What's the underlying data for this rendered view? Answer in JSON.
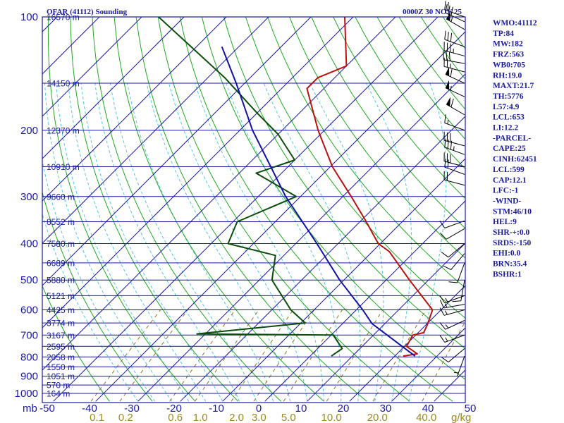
{
  "title": "OFAR (41112) Sounding",
  "datetime": "0000Z 30 NOV 25",
  "p_axis_unit": "mb",
  "mixing_ratio_unit": "g/kg",
  "indices": [
    "WMO:41112",
    "TP:84",
    "MW:182",
    "FRZ:563",
    "WB0:705",
    "RH:19.0",
    "MAXT:21.7",
    "TH:5776",
    "L57:4.9",
    "LCL:653",
    "LI:12.2",
    "-PARCEL-",
    "CAPE:25",
    "CINH:62451",
    "LCL:599",
    "CAP:12.1",
    "LFC:-1",
    "-WIND-",
    "STM:46/10",
    "HEL:9",
    "SHR-+:0.0",
    "SRDS:-150",
    "EHI:0.0",
    "BRN:35.4",
    "BSHR:1"
  ],
  "colors": {
    "frame": "#1a1aa0",
    "isobar": "#1a1aa0",
    "isotherm": "#1a1aa0",
    "dry_adiabat": "#1faa1f",
    "moist_adiabat": "#55c8e0",
    "mixing_ratio": "#8a7a20",
    "temperature": "#bb1111",
    "dewpoint": "#0b4d0b",
    "parcel": "#1111aa",
    "wind": "#000000"
  },
  "chart_data": {
    "type": "line",
    "chart_kind": "skew-t log-p sounding",
    "pressure_levels_mb": [
      1000,
      900,
      800,
      700,
      600,
      500,
      400,
      300,
      200,
      100
    ],
    "height_labels": [
      {
        "p": 1000,
        "label": "164 m"
      },
      {
        "p": 950,
        "label": "570 m"
      },
      {
        "p": 900,
        "label": "1051 m"
      },
      {
        "p": 850,
        "label": "1550 m"
      },
      {
        "p": 800,
        "label": "2058 m"
      },
      {
        "p": 750,
        "label": "2595 m"
      },
      {
        "p": 700,
        "label": "3167 m"
      },
      {
        "p": 650,
        "label": "3774 m"
      },
      {
        "p": 600,
        "label": "4425 m"
      },
      {
        "p": 550,
        "label": "5121 m"
      },
      {
        "p": 500,
        "label": "5880 m"
      },
      {
        "p": 450,
        "label": "6689 m"
      },
      {
        "p": 400,
        "label": "7580 m"
      },
      {
        "p": 350,
        "label": "8552 m"
      },
      {
        "p": 300,
        "label": "9660 m"
      },
      {
        "p": 250,
        "label": "10910 m"
      },
      {
        "p": 200,
        "label": "12370 m"
      },
      {
        "p": 150,
        "label": "14150 m"
      },
      {
        "p": 100,
        "label": "16570 m"
      }
    ],
    "temperature_ticks": [
      "-50",
      "-40",
      "-30",
      "-20",
      "-10",
      "0",
      "10",
      "20",
      "30",
      "40",
      "50"
    ],
    "temperature_ticks_c": [
      -50,
      -40,
      -30,
      -20,
      -10,
      0,
      10,
      20,
      30,
      40,
      50
    ],
    "mixing_ratio_ticks": [
      "0.1",
      "0.2",
      "0.6",
      "1.0",
      "2.0",
      "3.0",
      "5.0",
      "10.0",
      "20.0",
      "40.0"
    ],
    "xlim_bottom_c": [
      -50,
      50
    ],
    "ylim_mb": [
      1050,
      100
    ],
    "y_scale": "log",
    "series": [
      {
        "name": "",
        "role": "temperature",
        "points": [
          {
            "p": 796,
            "t": 22.0
          },
          {
            "p": 785,
            "t": 24.8
          },
          {
            "p": 750,
            "t": 20.5
          },
          {
            "p": 700,
            "t": 19.3
          },
          {
            "p": 690,
            "t": 21.3
          },
          {
            "p": 660,
            "t": 20.4
          },
          {
            "p": 600,
            "t": 18.0
          },
          {
            "p": 500,
            "t": 5.5
          },
          {
            "p": 420,
            "t": -6.0
          },
          {
            "p": 400,
            "t": -10.5
          },
          {
            "p": 350,
            "t": -18.5
          },
          {
            "p": 300,
            "t": -28.0
          },
          {
            "p": 250,
            "t": -39.5
          },
          {
            "p": 200,
            "t": -51.5
          },
          {
            "p": 155,
            "t": -64.0
          },
          {
            "p": 145,
            "t": -64.0
          },
          {
            "p": 135,
            "t": -60.0
          },
          {
            "p": 100,
            "t": -72.0
          }
        ]
      },
      {
        "name": "",
        "role": "dewpoint",
        "points": [
          {
            "p": 796,
            "t": 5.0
          },
          {
            "p": 760,
            "t": 5.8
          },
          {
            "p": 700,
            "t": 0.5
          },
          {
            "p": 695,
            "t": -32.0
          },
          {
            "p": 650,
            "t": -9.0
          },
          {
            "p": 600,
            "t": -15.5
          },
          {
            "p": 500,
            "t": -27.0
          },
          {
            "p": 430,
            "t": -32.0
          },
          {
            "p": 400,
            "t": -46.0
          },
          {
            "p": 350,
            "t": -49.0
          },
          {
            "p": 300,
            "t": -41.0
          },
          {
            "p": 260,
            "t": -56.0
          },
          {
            "p": 240,
            "t": -50.0
          },
          {
            "p": 205,
            "t": -60.0
          },
          {
            "p": 180,
            "t": -70.0
          },
          {
            "p": 145,
            "t": -86.0
          },
          {
            "p": 100,
            "t": -116.0
          }
        ]
      },
      {
        "name": "",
        "role": "parcel",
        "points": [
          {
            "p": 796,
            "t": 24.8
          },
          {
            "p": 653,
            "t": 7.0
          },
          {
            "p": 600,
            "t": 1.5
          },
          {
            "p": 500,
            "t": -11.0
          },
          {
            "p": 400,
            "t": -25.0
          },
          {
            "p": 300,
            "t": -43.5
          },
          {
            "p": 200,
            "t": -67.0
          },
          {
            "p": 150,
            "t": -82.0
          },
          {
            "p": 120,
            "t": -94.0
          }
        ]
      }
    ],
    "wind_barbs": [
      {
        "p": 100,
        "dir": 290,
        "spd": 20
      },
      {
        "p": 103,
        "dir": 295,
        "spd": 30
      },
      {
        "p": 108,
        "dir": 300,
        "spd": 55
      },
      {
        "p": 120,
        "dir": 290,
        "spd": 30
      },
      {
        "p": 127,
        "dir": 285,
        "spd": 35
      },
      {
        "p": 133,
        "dir": 280,
        "spd": 30
      },
      {
        "p": 140,
        "dir": 285,
        "spd": 25
      },
      {
        "p": 150,
        "dir": 295,
        "spd": 60
      },
      {
        "p": 163,
        "dir": 295,
        "spd": 55
      },
      {
        "p": 182,
        "dir": 300,
        "spd": 60
      },
      {
        "p": 200,
        "dir": 290,
        "spd": 15
      },
      {
        "p": 220,
        "dir": 285,
        "spd": 30
      },
      {
        "p": 232,
        "dir": 290,
        "spd": 35
      },
      {
        "p": 250,
        "dir": 285,
        "spd": 30
      },
      {
        "p": 262,
        "dir": 290,
        "spd": 20
      },
      {
        "p": 280,
        "dir": 285,
        "spd": 20
      },
      {
        "p": 348,
        "dir": 250,
        "spd": 10
      },
      {
        "p": 365,
        "dir": 240,
        "spd": 10
      },
      {
        "p": 400,
        "dir": 230,
        "spd": 10
      },
      {
        "p": 425,
        "dir": 220,
        "spd": 10
      },
      {
        "p": 450,
        "dir": 200,
        "spd": 10
      },
      {
        "p": 500,
        "dir": 190,
        "spd": 10
      },
      {
        "p": 550,
        "dir": 250,
        "spd": 15
      },
      {
        "p": 580,
        "dir": 260,
        "spd": 15
      },
      {
        "p": 600,
        "dir": 255,
        "spd": 15
      },
      {
        "p": 640,
        "dir": 245,
        "spd": 15
      },
      {
        "p": 700,
        "dir": 250,
        "spd": 15
      },
      {
        "p": 760,
        "dir": 230,
        "spd": 10
      },
      {
        "p": 796,
        "dir": 200,
        "spd": 5
      }
    ]
  }
}
